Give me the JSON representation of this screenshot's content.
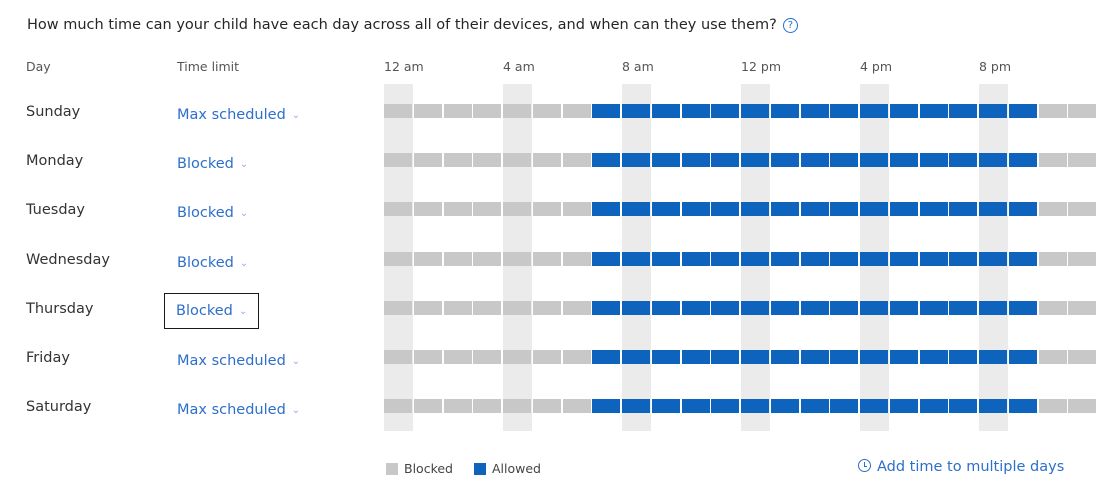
{
  "question": "How much time can your child have each day across all of their devices, and when can they use them?",
  "help_icon_glyph": "?",
  "headers": {
    "day": "Day",
    "time_limit": "Time limit"
  },
  "ticks": [
    "12 am",
    "4 am",
    "8 am",
    "12 pm",
    "4 pm",
    "8 pm"
  ],
  "chevron_glyph": "⌄",
  "days": [
    {
      "name": "Sunday",
      "limit": "Max scheduled",
      "allowed_from_hour": 7,
      "allowed_to_hour": 22
    },
    {
      "name": "Monday",
      "limit": "Blocked",
      "allowed_from_hour": 7,
      "allowed_to_hour": 22
    },
    {
      "name": "Tuesday",
      "limit": "Blocked",
      "allowed_from_hour": 7,
      "allowed_to_hour": 22
    },
    {
      "name": "Wednesday",
      "limit": "Blocked",
      "allowed_from_hour": 7,
      "allowed_to_hour": 22
    },
    {
      "name": "Thursday",
      "limit": "Blocked",
      "allowed_from_hour": 7,
      "allowed_to_hour": 22
    },
    {
      "name": "Friday",
      "limit": "Max scheduled",
      "allowed_from_hour": 7,
      "allowed_to_hour": 22
    },
    {
      "name": "Saturday",
      "limit": "Max scheduled",
      "allowed_from_hour": 7,
      "allowed_to_hour": 22
    }
  ],
  "focused_day": "Thursday",
  "legend": {
    "blocked": "Blocked",
    "allowed": "Allowed"
  },
  "add_time_label": "Add time to multiple days",
  "colors": {
    "allowed": "#0e63bd",
    "blocked": "#c8c8c8",
    "link": "#2d6fcc"
  }
}
